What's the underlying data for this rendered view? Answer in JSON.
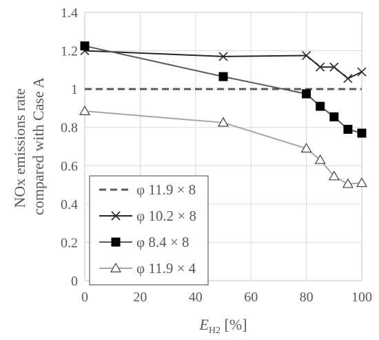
{
  "chart_data": {
    "type": "line",
    "xlabel_main": "E",
    "xlabel_sub": "H2",
    "xlabel_unit": " [%]",
    "ylabel_lines": [
      "NOx emissions rate",
      "compared with Case A"
    ],
    "xlim": [
      0,
      100
    ],
    "ylim": [
      0,
      1.4
    ],
    "x_ticks": [
      "0",
      "20",
      "40",
      "60",
      "80",
      "100"
    ],
    "y_ticks": [
      "0",
      "0.2",
      "0.4",
      "0.6",
      "0.8",
      "1",
      "1.2",
      "1.4"
    ],
    "grid": true,
    "legend_position": "bottom-left",
    "series": [
      {
        "name": "φ 11.9 × 8",
        "color": "#595959",
        "marker": "none",
        "dashed": true,
        "x": [
          0,
          100
        ],
        "y": [
          1.0,
          1.0
        ]
      },
      {
        "name": "φ 10.2 × 8",
        "color": "#262626",
        "marker": "x",
        "dashed": false,
        "x": [
          0,
          50,
          80,
          85,
          90,
          95,
          100
        ],
        "y": [
          1.2,
          1.17,
          1.175,
          1.115,
          1.115,
          1.055,
          1.09
        ]
      },
      {
        "name": "φ 8.4 × 8",
        "color": "#595959",
        "marker": "square",
        "dashed": false,
        "x": [
          0,
          50,
          80,
          85,
          90,
          95,
          100
        ],
        "y": [
          1.225,
          1.065,
          0.975,
          0.91,
          0.855,
          0.79,
          0.77
        ]
      },
      {
        "name": "φ 11.9 × 4",
        "color": "#a6a6a6",
        "marker": "triangle",
        "dashed": false,
        "x": [
          0,
          50,
          80,
          85,
          90,
          95,
          100
        ],
        "y": [
          0.885,
          0.825,
          0.69,
          0.63,
          0.545,
          0.505,
          0.51
        ]
      }
    ]
  }
}
